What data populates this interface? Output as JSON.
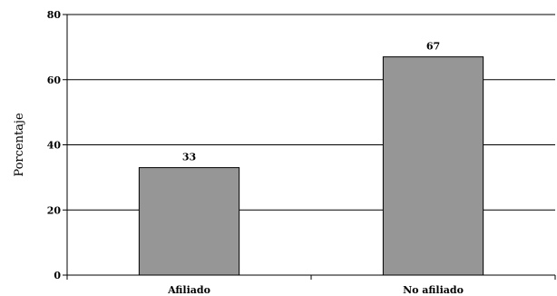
{
  "chart_data": {
    "type": "bar",
    "categories": [
      "Afiliado",
      "No afiliado"
    ],
    "values": [
      33,
      67
    ],
    "data_labels": [
      "33",
      "67"
    ],
    "title": "",
    "xlabel": "",
    "ylabel": "Porcentaje",
    "ylim": [
      0,
      80
    ],
    "yticks": [
      0,
      20,
      40,
      60,
      80
    ],
    "grid": true,
    "bar_color": "#969696",
    "bar_edge_color": "#000000"
  }
}
